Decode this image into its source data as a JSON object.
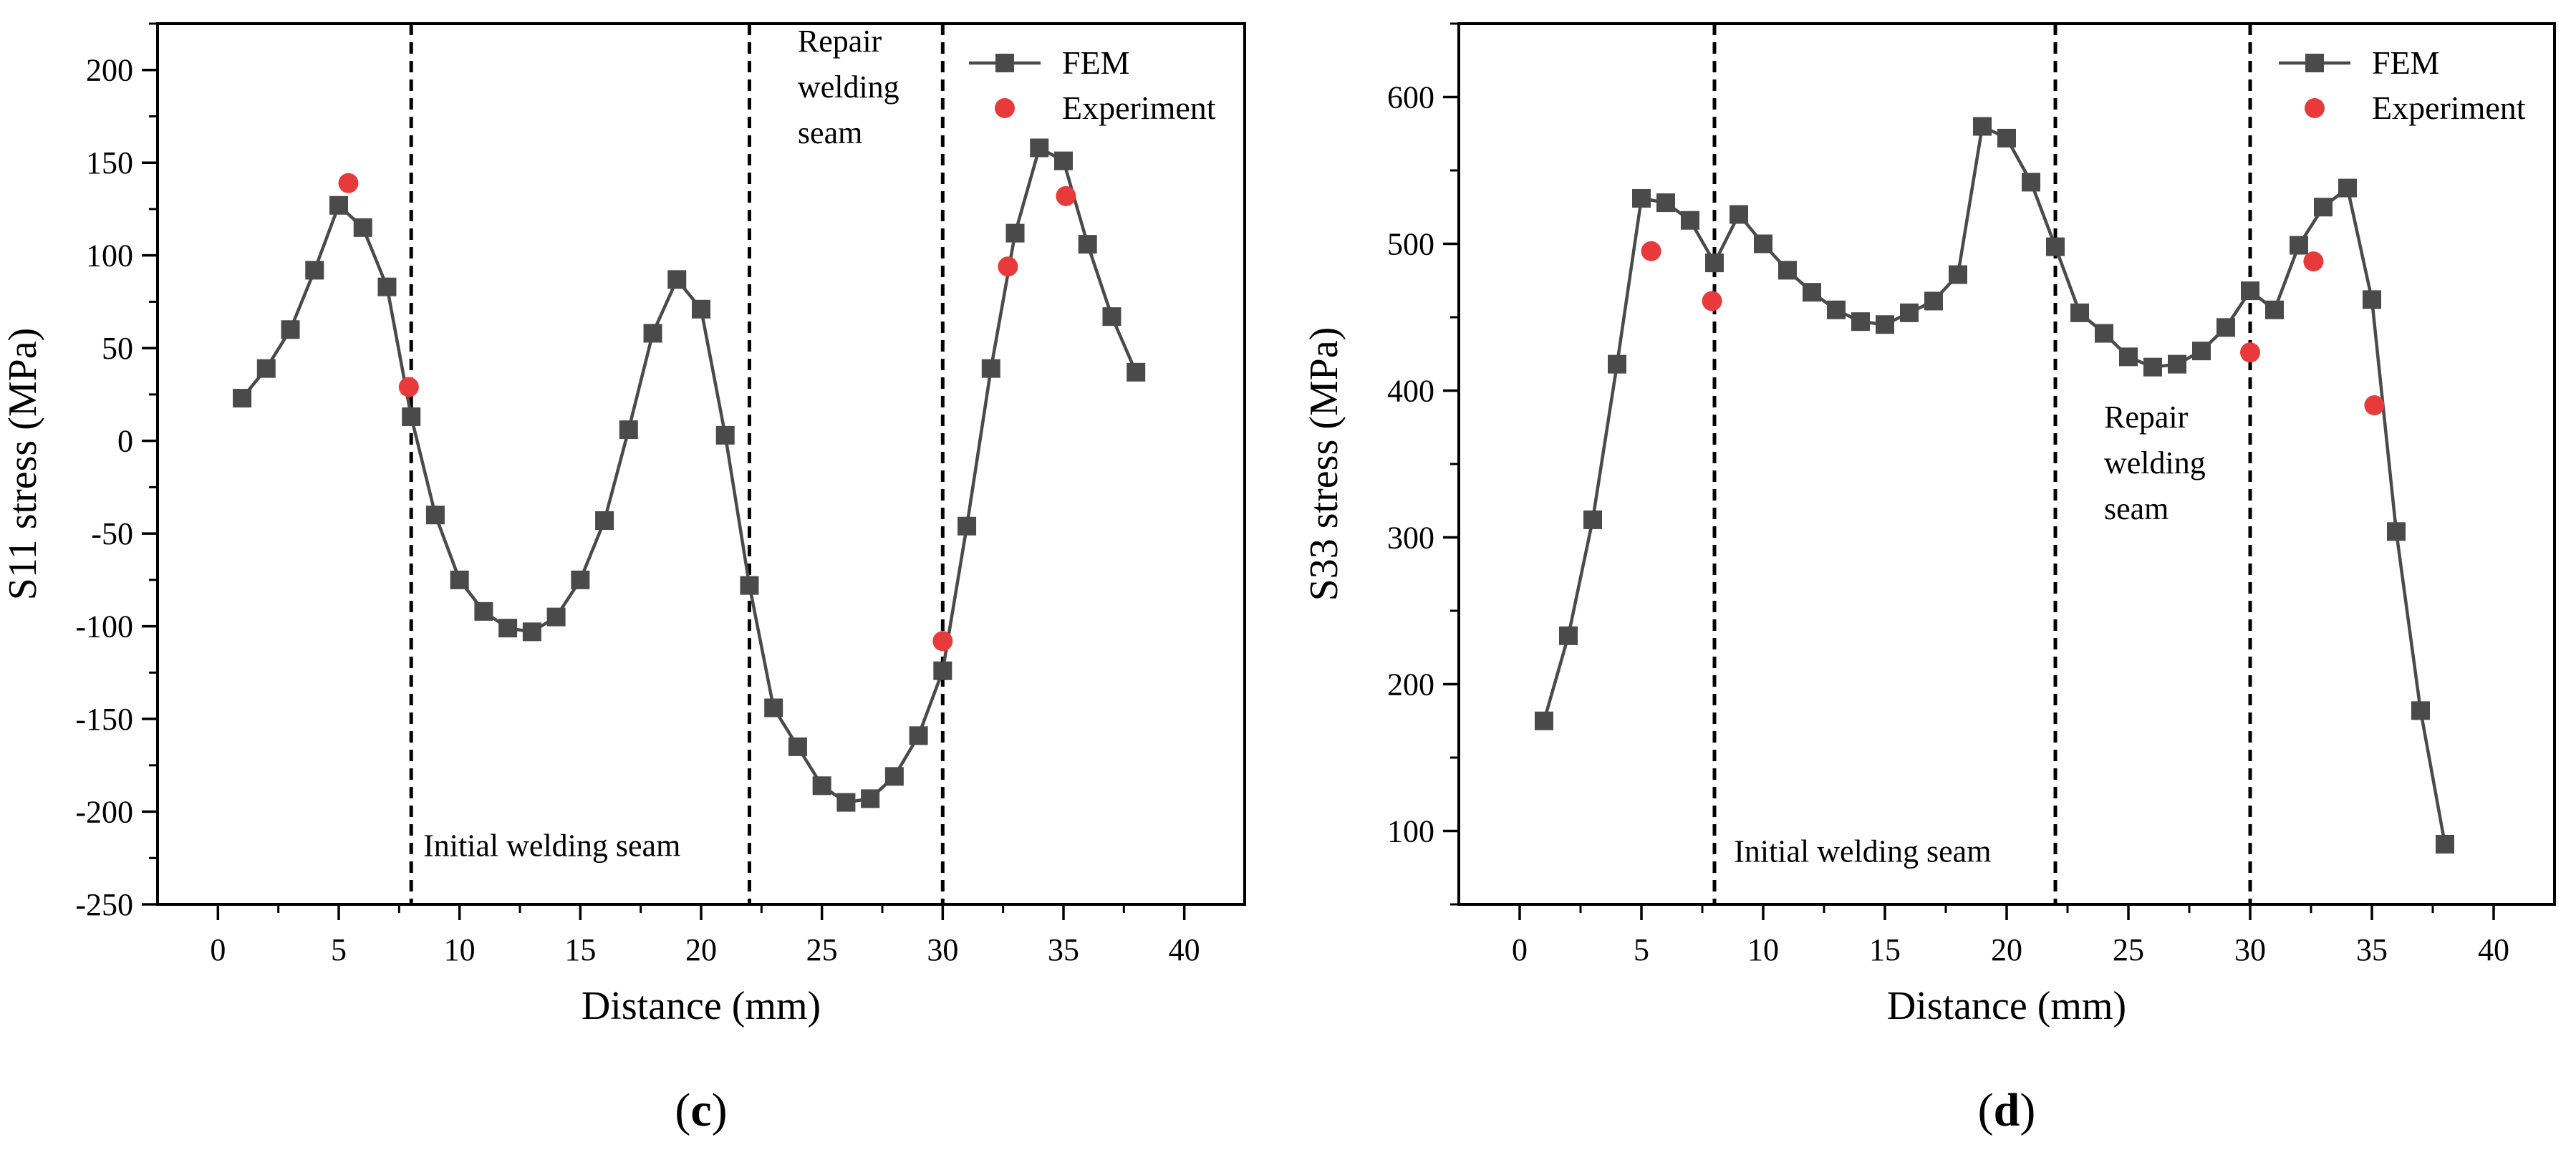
{
  "chart_data": [
    {
      "type": "line",
      "panel_label": "(c)",
      "panel_letter": "c",
      "xlabel": "Distance (mm)",
      "ylabel": "S11 stress (MPa)",
      "xlim": [
        -2.5,
        42.5
      ],
      "ylim": [
        -250,
        225
      ],
      "xticks": [
        0,
        5,
        10,
        15,
        20,
        25,
        30,
        35,
        40
      ],
      "yticks": [
        -250,
        -200,
        -150,
        -100,
        -50,
        0,
        50,
        100,
        150,
        200
      ],
      "legend": {
        "position": "top-right",
        "entries": [
          "FEM",
          "Experiment"
        ]
      },
      "series": [
        {
          "name": "FEM",
          "color": "#4a4a4a",
          "marker": "square",
          "x": [
            1,
            2,
            3,
            4,
            5,
            6,
            7,
            8,
            9,
            10,
            11,
            12,
            13,
            14,
            15,
            16,
            17,
            18,
            19,
            20,
            21,
            22,
            23,
            24,
            25,
            26,
            27,
            28,
            29,
            30,
            31,
            32,
            33,
            34,
            35,
            36,
            37,
            38
          ],
          "y": [
            23,
            39,
            60,
            92,
            127,
            115,
            83,
            13,
            -40,
            -75,
            -92,
            -101,
            -103,
            -95,
            -75,
            -43,
            6,
            58,
            87,
            71,
            3,
            -78,
            -144,
            -165,
            -186,
            -195,
            -193,
            -181,
            -159,
            -124,
            -46,
            39,
            112,
            158,
            151,
            106,
            67,
            37
          ]
        },
        {
          "name": "Experiment",
          "color": "#e83a3a",
          "marker": "circle",
          "x": [
            5.4,
            7.9,
            30.0,
            32.7,
            35.1
          ],
          "y": [
            139,
            29,
            -108,
            94,
            132
          ]
        }
      ],
      "vlines": [
        8,
        22,
        30
      ],
      "annotations": [
        {
          "lines": [
            "Initial welding seam"
          ],
          "anchor_x": 8.5,
          "anchor_y": -224
        },
        {
          "lines": [
            "Repair",
            "welding",
            "seam"
          ],
          "anchor_x": 24,
          "anchor_y": 210
        }
      ]
    },
    {
      "type": "line",
      "panel_label": "(d)",
      "panel_letter": "d",
      "xlabel": "Distance (mm)",
      "ylabel": "S33 stress (MPa)",
      "xlim": [
        -2.5,
        42.5
      ],
      "ylim": [
        50,
        650
      ],
      "xticks": [
        0,
        5,
        10,
        15,
        20,
        25,
        30,
        35,
        40
      ],
      "yticks": [
        100,
        200,
        300,
        400,
        500,
        600
      ],
      "legend": {
        "position": "top-right",
        "entries": [
          "FEM",
          "Experiment"
        ]
      },
      "series": [
        {
          "name": "FEM",
          "color": "#4a4a4a",
          "marker": "square",
          "x": [
            1,
            2,
            3,
            4,
            5,
            6,
            7,
            8,
            9,
            10,
            11,
            12,
            13,
            14,
            15,
            16,
            17,
            18,
            19,
            20,
            21,
            22,
            23,
            24,
            25,
            26,
            27,
            28,
            29,
            30,
            31,
            32,
            33,
            34,
            35,
            36,
            37,
            38
          ],
          "y": [
            175,
            233,
            312,
            418,
            531,
            528,
            516,
            487,
            520,
            500,
            482,
            467,
            455,
            447,
            445,
            453,
            461,
            479,
            580,
            572,
            542,
            498,
            453,
            439,
            423,
            416,
            418,
            427,
            443,
            468,
            455,
            499,
            525,
            538,
            462,
            304,
            182,
            91
          ]
        },
        {
          "name": "Experiment",
          "color": "#e83a3a",
          "marker": "circle",
          "x": [
            5.4,
            7.9,
            30.0,
            32.6,
            35.1
          ],
          "y": [
            495,
            461,
            426,
            488,
            390
          ]
        }
      ],
      "vlines": [
        8,
        22,
        30
      ],
      "annotations": [
        {
          "lines": [
            "Initial welding seam"
          ],
          "anchor_x": 8.8,
          "anchor_y": 79
        },
        {
          "lines": [
            "Repair",
            "welding",
            "seam"
          ],
          "anchor_x": 24,
          "anchor_y": 375
        }
      ]
    }
  ]
}
